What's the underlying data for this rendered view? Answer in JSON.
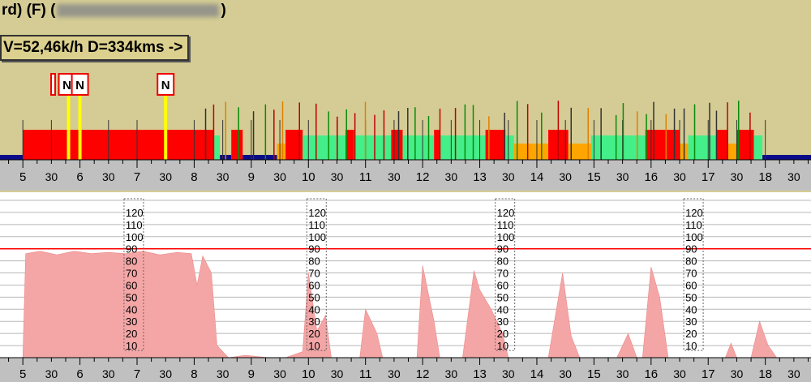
{
  "header": {
    "title_prefix": "rd) (F) (",
    "title_suffix": ")",
    "summary": "V=52,46k/h D=334kms ->"
  },
  "colors": {
    "background": "#d4cc94",
    "driving": "#ff0000",
    "rest": "#0a0a8a",
    "work": "#44ee88",
    "availability": "#ffa500",
    "marker": "#ffff00",
    "speed_fill": "#f4a6a6",
    "speed_limit": "#ff0000"
  },
  "markers": [
    {
      "label": "N",
      "hour": 5.8
    },
    {
      "label": "N",
      "hour": 6.0
    },
    {
      "label": "N",
      "hour": 7.5
    }
  ],
  "time_axis": {
    "start_hour": 4.6,
    "end_hour": 18.8,
    "hour_labels": [
      "5",
      "6",
      "7",
      "8",
      "9",
      "10",
      "11",
      "12",
      "13",
      "14",
      "15",
      "16",
      "17",
      "18"
    ],
    "half_label": "30"
  },
  "speed_scale": {
    "labels": [
      "120",
      "110",
      "100",
      "90",
      "80",
      "70",
      "60",
      "50",
      "40",
      "30",
      "20",
      "10"
    ],
    "limit": 90,
    "max": 130,
    "columns_at_hour": [
      6.8,
      10.0,
      13.3,
      16.6
    ]
  },
  "chart_data": {
    "type": "area",
    "x_unit": "hour of day",
    "y_unit": "km/h",
    "activity_segments": [
      {
        "start": 4.6,
        "end": 5.0,
        "kind": "rest"
      },
      {
        "start": 5.0,
        "end": 8.35,
        "kind": "driving"
      },
      {
        "start": 8.35,
        "end": 8.45,
        "kind": "work"
      },
      {
        "start": 8.45,
        "end": 8.65,
        "kind": "rest"
      },
      {
        "start": 8.65,
        "end": 8.85,
        "kind": "driving"
      },
      {
        "start": 8.85,
        "end": 9.45,
        "kind": "rest"
      },
      {
        "start": 9.45,
        "end": 9.6,
        "kind": "availability"
      },
      {
        "start": 9.6,
        "end": 9.9,
        "kind": "driving"
      },
      {
        "start": 9.9,
        "end": 10.65,
        "kind": "work"
      },
      {
        "start": 10.65,
        "end": 10.8,
        "kind": "driving"
      },
      {
        "start": 10.8,
        "end": 11.45,
        "kind": "work"
      },
      {
        "start": 11.45,
        "end": 11.65,
        "kind": "driving"
      },
      {
        "start": 11.65,
        "end": 12.2,
        "kind": "work"
      },
      {
        "start": 12.2,
        "end": 12.3,
        "kind": "driving"
      },
      {
        "start": 12.3,
        "end": 13.1,
        "kind": "work"
      },
      {
        "start": 13.1,
        "end": 13.45,
        "kind": "driving"
      },
      {
        "start": 13.45,
        "end": 13.6,
        "kind": "work"
      },
      {
        "start": 13.6,
        "end": 14.2,
        "kind": "availability"
      },
      {
        "start": 14.2,
        "end": 14.55,
        "kind": "driving"
      },
      {
        "start": 14.55,
        "end": 14.95,
        "kind": "availability"
      },
      {
        "start": 14.95,
        "end": 15.9,
        "kind": "work"
      },
      {
        "start": 15.9,
        "end": 16.5,
        "kind": "driving"
      },
      {
        "start": 16.5,
        "end": 16.65,
        "kind": "availability"
      },
      {
        "start": 16.65,
        "end": 17.15,
        "kind": "work"
      },
      {
        "start": 17.15,
        "end": 17.35,
        "kind": "driving"
      },
      {
        "start": 17.35,
        "end": 17.5,
        "kind": "availability"
      },
      {
        "start": 17.5,
        "end": 17.8,
        "kind": "driving"
      },
      {
        "start": 17.8,
        "end": 17.95,
        "kind": "work"
      },
      {
        "start": 17.95,
        "end": 18.8,
        "kind": "rest"
      }
    ],
    "speed_points": [
      [
        4.6,
        0
      ],
      [
        5.0,
        0
      ],
      [
        5.05,
        86
      ],
      [
        5.3,
        88
      ],
      [
        5.6,
        85
      ],
      [
        5.9,
        88
      ],
      [
        6.2,
        86
      ],
      [
        6.5,
        87
      ],
      [
        6.8,
        86
      ],
      [
        7.1,
        88
      ],
      [
        7.4,
        85
      ],
      [
        7.7,
        87
      ],
      [
        7.95,
        86
      ],
      [
        8.05,
        60
      ],
      [
        8.15,
        84
      ],
      [
        8.3,
        70
      ],
      [
        8.4,
        10
      ],
      [
        8.6,
        0
      ],
      [
        8.9,
        2
      ],
      [
        9.3,
        0
      ],
      [
        9.6,
        0
      ],
      [
        9.9,
        5
      ],
      [
        10.0,
        70
      ],
      [
        10.15,
        22
      ],
      [
        10.3,
        35
      ],
      [
        10.4,
        0
      ],
      [
        10.9,
        0
      ],
      [
        11.0,
        40
      ],
      [
        11.2,
        20
      ],
      [
        11.3,
        0
      ],
      [
        11.9,
        0
      ],
      [
        12.0,
        76
      ],
      [
        12.2,
        30
      ],
      [
        12.3,
        0
      ],
      [
        12.7,
        0
      ],
      [
        12.9,
        72
      ],
      [
        13.0,
        56
      ],
      [
        13.2,
        40
      ],
      [
        13.4,
        20
      ],
      [
        13.5,
        0
      ],
      [
        14.2,
        0
      ],
      [
        14.45,
        70
      ],
      [
        14.6,
        18
      ],
      [
        14.75,
        0
      ],
      [
        15.4,
        0
      ],
      [
        15.6,
        20
      ],
      [
        15.75,
        0
      ],
      [
        15.85,
        0
      ],
      [
        16.0,
        75
      ],
      [
        16.15,
        50
      ],
      [
        16.3,
        0
      ],
      [
        17.3,
        0
      ],
      [
        17.4,
        12
      ],
      [
        17.5,
        0
      ],
      [
        17.75,
        0
      ],
      [
        17.9,
        30
      ],
      [
        18.05,
        10
      ],
      [
        18.2,
        0
      ],
      [
        18.8,
        0
      ]
    ]
  }
}
